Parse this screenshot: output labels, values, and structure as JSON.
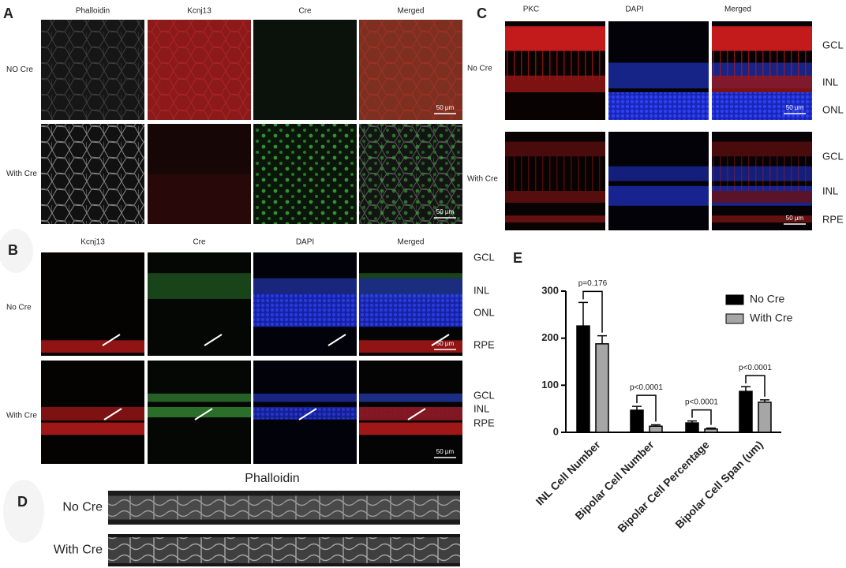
{
  "panels": {
    "A": {
      "label": "A",
      "columns": [
        "Phalloidin",
        "Kcnj13",
        "Cre",
        "Merged"
      ],
      "rows": [
        "NO Cre",
        "With Cre"
      ],
      "scale_bar": "50 µm"
    },
    "B": {
      "label": "B",
      "columns": [
        "Kcnj13",
        "Cre",
        "DAPI",
        "Merged"
      ],
      "rows": [
        "No Cre",
        "With Cre"
      ],
      "layers": [
        [
          "GCL",
          "INL",
          "ONL",
          "RPE"
        ],
        [
          "GCL",
          "INL",
          "RPE"
        ]
      ],
      "scale_bar": "50 µm"
    },
    "C": {
      "label": "C",
      "columns": [
        "PKC",
        "DAPI",
        "Merged"
      ],
      "rows": [
        "No Cre",
        "With Cre"
      ],
      "layers": [
        [
          "GCL",
          "INL",
          "ONL"
        ],
        [
          "GCL",
          "INL",
          "RPE"
        ]
      ],
      "scale_bar": "50 µm"
    },
    "D": {
      "label": "D",
      "title": "Phalloidin",
      "rows": [
        "No Cre",
        "With Cre"
      ]
    },
    "E": {
      "label": "E"
    }
  },
  "chart_data": {
    "type": "bar",
    "categories": [
      "INL Cell Number",
      "Bipolar Cell Number",
      "Bipolar Cell Percentage",
      "Bipolar Cell Span (um)"
    ],
    "series": [
      {
        "name": "No Cre",
        "color": "#000000",
        "values": [
          226,
          47,
          20,
          87
        ],
        "errors": [
          50,
          8,
          4,
          10
        ]
      },
      {
        "name": "With Cre",
        "color": "#a6a6a6",
        "values": [
          188,
          13,
          7,
          64
        ],
        "errors": [
          17,
          3,
          2,
          5
        ]
      }
    ],
    "annotations": [
      "p=0.176",
      "p<0.0001",
      "p<0.0001",
      "p<0.0001"
    ],
    "ylim": [
      0,
      300
    ],
    "yticks": [
      0,
      100,
      200,
      300
    ],
    "legend": "upper right"
  }
}
